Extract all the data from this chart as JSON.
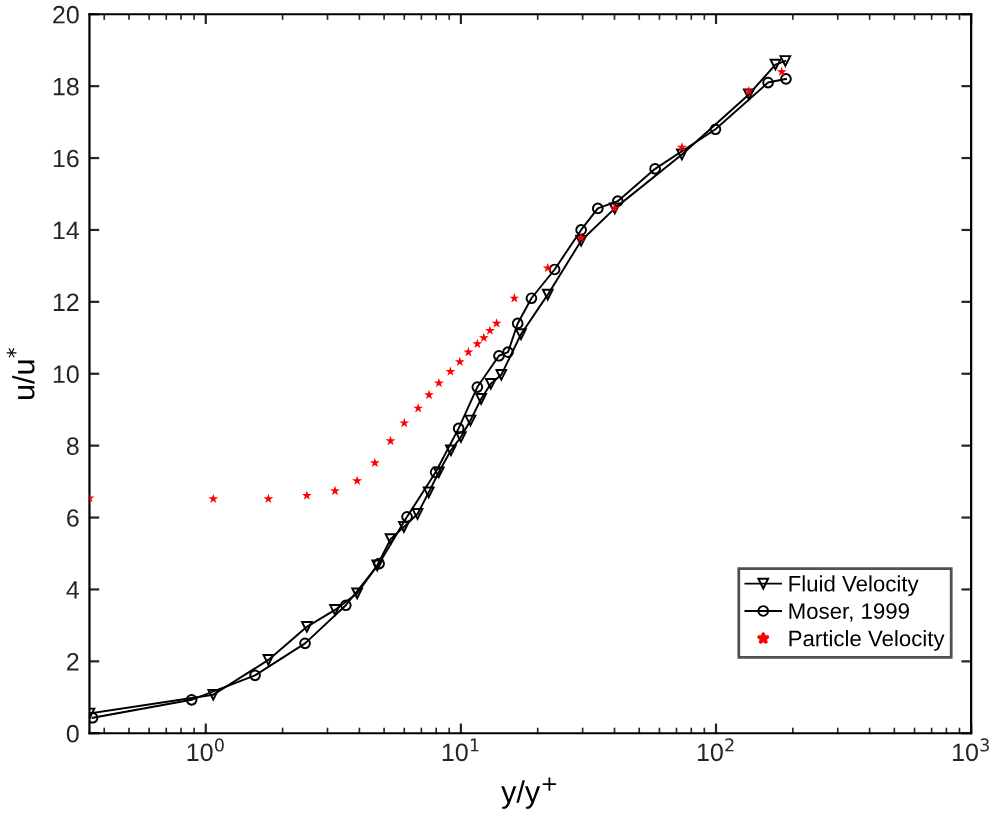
{
  "chart_data": {
    "type": "line",
    "xlabel": "y/y$^{+}$",
    "ylabel": "u/u$^{*}$",
    "log": "x",
    "xlim": [
      0.35,
      1000
    ],
    "xticks": [
      {
        "value": 1,
        "label": "10$^{0}$"
      },
      {
        "value": 10,
        "label": "10$^{1}$"
      },
      {
        "value": 100,
        "label": "10$^{2}$"
      },
      {
        "value": 1000,
        "label": "10$^{3}$"
      }
    ],
    "ylim": [
      0,
      20
    ],
    "yticks": [
      0,
      2,
      4,
      6,
      8,
      10,
      12,
      14,
      16,
      18,
      20
    ],
    "grid": false,
    "legend": "bottom right",
    "series": [
      {
        "name": "Fluid Velocity",
        "marker": "triangle",
        "line_style": "solid",
        "color": "#000000",
        "x": [
          0.35,
          1.07,
          1.76,
          2.49,
          3.21,
          3.92,
          4.7,
          5.3,
          5.98,
          6.76,
          7.48,
          8.19,
          9.14,
          10.0,
          10.9,
          12.0,
          13.1,
          14.4,
          17.2,
          21.9,
          29.6,
          40.1,
          73.5,
          134.5,
          171,
          187
        ],
        "values": [
          0.55,
          1.07,
          2.04,
          2.96,
          3.43,
          3.89,
          4.67,
          5.4,
          5.74,
          6.1,
          6.7,
          7.26,
          7.87,
          8.24,
          8.7,
          9.3,
          9.72,
          9.97,
          11.1,
          12.2,
          13.7,
          14.6,
          16.1,
          17.77,
          18.6,
          18.7
        ]
      },
      {
        "name": "Moser, 1999",
        "marker": "circle",
        "line_style": "solid",
        "color": "#000000",
        "x": [
          0.36,
          0.88,
          1.56,
          2.45,
          3.54,
          4.78,
          6.15,
          7.96,
          9.8,
          11.6,
          14.1,
          15.3,
          16.7,
          18.9,
          23.3,
          29.6,
          34.4,
          41.2,
          57.7,
          99.5,
          160,
          188
        ],
        "values": [
          0.43,
          0.93,
          1.61,
          2.5,
          3.56,
          4.72,
          6.02,
          7.26,
          8.48,
          9.63,
          10.5,
          10.6,
          11.4,
          12.1,
          12.9,
          14.0,
          14.6,
          14.8,
          15.7,
          16.8,
          18.1,
          18.2
        ]
      },
      {
        "name": "Particle Velocity",
        "type": "scatter",
        "marker": "star",
        "color": "#ff0000",
        "x": [
          0.35,
          1.07,
          1.76,
          2.49,
          3.21,
          3.92,
          4.6,
          5.3,
          6.0,
          6.8,
          7.5,
          8.2,
          9.1,
          9.9,
          10.7,
          11.6,
          12.3,
          13.0,
          13.8,
          16.2,
          21.9,
          29.6,
          40,
          73.5,
          134.5,
          181
        ],
        "values": [
          6.54,
          6.52,
          6.52,
          6.61,
          6.74,
          7.02,
          7.52,
          8.13,
          8.63,
          9.04,
          9.41,
          9.74,
          10.06,
          10.33,
          10.6,
          10.83,
          11.0,
          11.2,
          11.4,
          12.1,
          12.94,
          13.78,
          14.6,
          16.3,
          17.86,
          18.4
        ]
      }
    ]
  }
}
